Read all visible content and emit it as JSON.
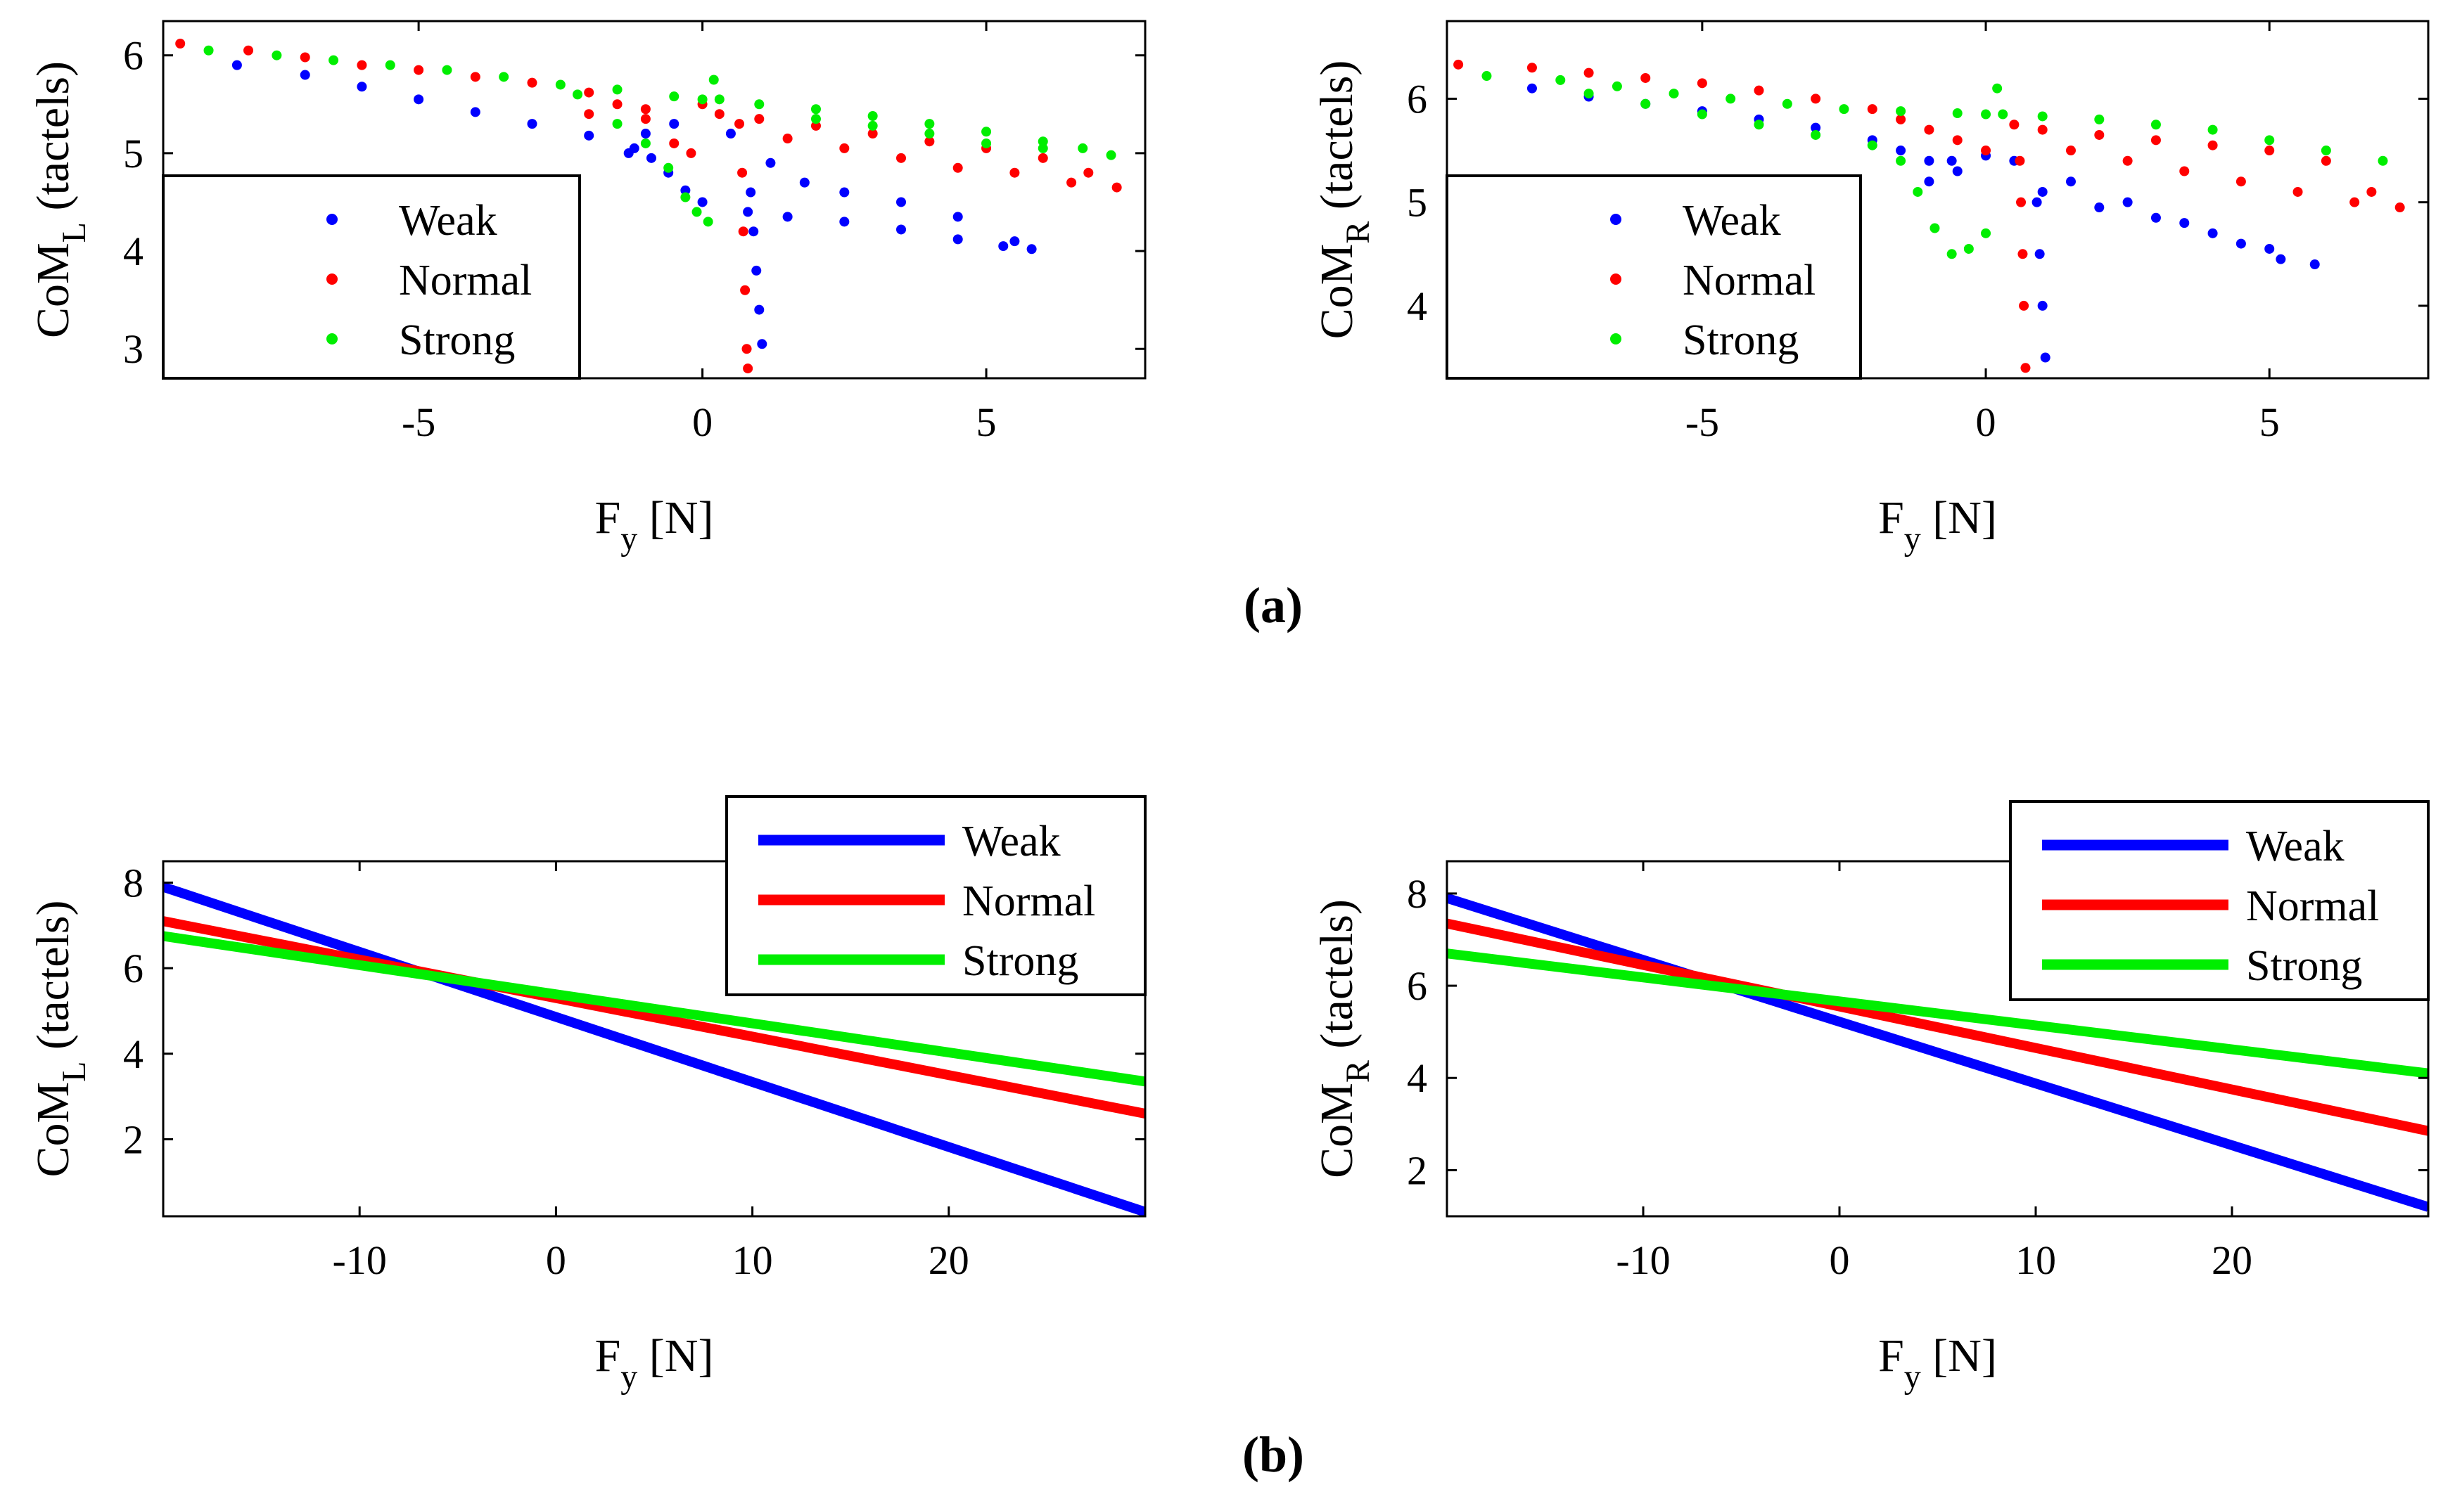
{
  "figure": {
    "panel_labels": [
      "(a)",
      "(b)"
    ]
  },
  "colors": {
    "weak": "#0000ff",
    "normal": "#ff0000",
    "strong": "#00ee00",
    "axis": "#000000"
  },
  "chart_data": [
    {
      "id": "a_left",
      "type": "scatter",
      "title": "",
      "xlabel": "F",
      "xlabel_sub": "y",
      "xlabel_unit": " [N]",
      "ylabel": "CoM",
      "ylabel_sub": "L",
      "ylabel_unit": " (tactels)",
      "xlim": [
        -9.5,
        7.8
      ],
      "ylim": [
        2.7,
        6.35
      ],
      "xticks": [
        -5,
        0,
        5
      ],
      "xtick_labels": [
        "-5",
        "0",
        "5"
      ],
      "yticks": [
        3,
        4,
        5,
        6
      ],
      "ytick_labels": [
        "3",
        "4",
        "5",
        "6"
      ],
      "legend": {
        "position": "bottom-left",
        "labels": [
          "Weak",
          "Normal",
          "Strong"
        ]
      },
      "series": [
        {
          "name": "Weak",
          "color": "weak",
          "points": [
            [
              -8.2,
              5.9
            ],
            [
              -7.0,
              5.8
            ],
            [
              -6.0,
              5.68
            ],
            [
              -5.0,
              5.55
            ],
            [
              -4.0,
              5.42
            ],
            [
              -3.0,
              5.3
            ],
            [
              -2.0,
              5.18
            ],
            [
              -1.2,
              5.05
            ],
            [
              -1.3,
              5.0
            ],
            [
              -0.9,
              4.95
            ],
            [
              -0.6,
              4.8
            ],
            [
              -0.3,
              4.62
            ],
            [
              0.0,
              4.5
            ],
            [
              0.8,
              4.4
            ],
            [
              1.5,
              4.35
            ],
            [
              2.5,
              4.3
            ],
            [
              3.5,
              4.22
            ],
            [
              4.5,
              4.12
            ],
            [
              5.3,
              4.05
            ],
            [
              5.8,
              4.02
            ],
            [
              -1.0,
              5.2
            ],
            [
              -0.5,
              5.3
            ],
            [
              0.5,
              5.2
            ],
            [
              1.2,
              4.9
            ],
            [
              1.8,
              4.7
            ],
            [
              2.5,
              4.6
            ],
            [
              3.5,
              4.5
            ],
            [
              4.5,
              4.35
            ],
            [
              5.5,
              4.1
            ],
            [
              0.85,
              4.6
            ],
            [
              0.9,
              4.2
            ],
            [
              0.95,
              3.8
            ],
            [
              1.0,
              3.4
            ],
            [
              1.05,
              3.05
            ]
          ]
        },
        {
          "name": "Normal",
          "color": "normal",
          "points": [
            [
              -9.2,
              6.12
            ],
            [
              -8.0,
              6.05
            ],
            [
              -7.0,
              5.98
            ],
            [
              -6.0,
              5.9
            ],
            [
              -5.0,
              5.85
            ],
            [
              -4.0,
              5.78
            ],
            [
              -3.0,
              5.72
            ],
            [
              -2.0,
              5.62
            ],
            [
              -1.5,
              5.5
            ],
            [
              -1.0,
              5.35
            ],
            [
              -0.5,
              5.1
            ],
            [
              -0.2,
              5.0
            ],
            [
              0.3,
              5.4
            ],
            [
              1.0,
              5.35
            ],
            [
              2.0,
              5.28
            ],
            [
              3.0,
              5.2
            ],
            [
              4.0,
              5.12
            ],
            [
              5.0,
              5.05
            ],
            [
              6.0,
              4.95
            ],
            [
              6.8,
              4.8
            ],
            [
              7.3,
              4.65
            ],
            [
              -2.0,
              5.4
            ],
            [
              -1.0,
              5.45
            ],
            [
              0.0,
              5.5
            ],
            [
              1.5,
              5.15
            ],
            [
              2.5,
              5.05
            ],
            [
              3.5,
              4.95
            ],
            [
              4.5,
              4.85
            ],
            [
              5.5,
              4.8
            ],
            [
              6.5,
              4.7
            ],
            [
              0.65,
              5.3
            ],
            [
              0.7,
              4.8
            ],
            [
              0.72,
              4.2
            ],
            [
              0.75,
              3.6
            ],
            [
              0.78,
              3.0
            ],
            [
              0.8,
              2.8
            ]
          ]
        },
        {
          "name": "Strong",
          "color": "strong",
          "points": [
            [
              -8.7,
              6.05
            ],
            [
              -7.5,
              6.0
            ],
            [
              -6.5,
              5.95
            ],
            [
              -5.5,
              5.9
            ],
            [
              -4.5,
              5.85
            ],
            [
              -3.5,
              5.78
            ],
            [
              -2.5,
              5.7
            ],
            [
              -1.5,
              5.65
            ],
            [
              -0.5,
              5.58
            ],
            [
              0.0,
              5.55
            ],
            [
              0.2,
              5.75
            ],
            [
              0.3,
              5.55
            ],
            [
              1.0,
              5.5
            ],
            [
              2.0,
              5.45
            ],
            [
              3.0,
              5.38
            ],
            [
              4.0,
              5.3
            ],
            [
              5.0,
              5.22
            ],
            [
              6.0,
              5.12
            ],
            [
              6.7,
              5.05
            ],
            [
              7.2,
              4.98
            ],
            [
              -2.2,
              5.6
            ],
            [
              -1.5,
              5.3
            ],
            [
              -1.0,
              5.1
            ],
            [
              -0.6,
              4.85
            ],
            [
              -0.3,
              4.55
            ],
            [
              -0.1,
              4.4
            ],
            [
              0.1,
              4.3
            ],
            [
              2.0,
              5.35
            ],
            [
              3.0,
              5.28
            ],
            [
              4.0,
              5.2
            ],
            [
              5.0,
              5.1
            ],
            [
              6.0,
              5.05
            ]
          ]
        }
      ]
    },
    {
      "id": "a_right",
      "type": "scatter",
      "title": "",
      "xlabel": "F",
      "xlabel_sub": "y",
      "xlabel_unit": " [N]",
      "ylabel": "CoM",
      "ylabel_sub": "R",
      "ylabel_unit": " (tactels)",
      "xlim": [
        -9.5,
        7.8
      ],
      "ylim": [
        3.3,
        6.75
      ],
      "xticks": [
        -5,
        0,
        5
      ],
      "xtick_labels": [
        "-5",
        "0",
        "5"
      ],
      "yticks": [
        4,
        5,
        6
      ],
      "ytick_labels": [
        "4",
        "5",
        "6"
      ],
      "legend": {
        "position": "bottom-left",
        "labels": [
          "Weak",
          "Normal",
          "Strong"
        ]
      },
      "series": [
        {
          "name": "Weak",
          "color": "weak",
          "points": [
            [
              -8.0,
              6.1
            ],
            [
              -7.0,
              6.02
            ],
            [
              -6.0,
              5.95
            ],
            [
              -5.0,
              5.88
            ],
            [
              -4.0,
              5.8
            ],
            [
              -3.0,
              5.72
            ],
            [
              -2.0,
              5.6
            ],
            [
              -1.5,
              5.5
            ],
            [
              -1.0,
              5.4
            ],
            [
              -0.5,
              5.3
            ],
            [
              0.0,
              5.45
            ],
            [
              0.5,
              5.4
            ],
            [
              1.5,
              5.2
            ],
            [
              2.5,
              5.0
            ],
            [
              3.5,
              4.8
            ],
            [
              4.5,
              4.6
            ],
            [
              5.2,
              4.45
            ],
            [
              5.8,
              4.4
            ],
            [
              -1.0,
              5.2
            ],
            [
              -0.6,
              5.4
            ],
            [
              1.0,
              5.1
            ],
            [
              2.0,
              4.95
            ],
            [
              3.0,
              4.85
            ],
            [
              4.0,
              4.7
            ],
            [
              5.0,
              4.55
            ],
            [
              0.9,
              5.0
            ],
            [
              0.95,
              4.5
            ],
            [
              1.0,
              4.0
            ],
            [
              1.05,
              3.5
            ]
          ]
        },
        {
          "name": "Normal",
          "color": "normal",
          "points": [
            [
              -9.3,
              6.33
            ],
            [
              -8.0,
              6.3
            ],
            [
              -7.0,
              6.25
            ],
            [
              -6.0,
              6.2
            ],
            [
              -5.0,
              6.15
            ],
            [
              -4.0,
              6.08
            ],
            [
              -3.0,
              6.0
            ],
            [
              -2.0,
              5.9
            ],
            [
              -1.5,
              5.8
            ],
            [
              -1.0,
              5.7
            ],
            [
              -0.5,
              5.6
            ],
            [
              0.0,
              5.5
            ],
            [
              0.5,
              5.75
            ],
            [
              1.0,
              5.7
            ],
            [
              2.0,
              5.65
            ],
            [
              3.0,
              5.6
            ],
            [
              4.0,
              5.55
            ],
            [
              5.0,
              5.5
            ],
            [
              6.0,
              5.4
            ],
            [
              6.8,
              5.1
            ],
            [
              7.3,
              4.95
            ],
            [
              1.5,
              5.5
            ],
            [
              2.5,
              5.4
            ],
            [
              3.5,
              5.3
            ],
            [
              4.5,
              5.2
            ],
            [
              5.5,
              5.1
            ],
            [
              6.5,
              5.0
            ],
            [
              0.6,
              5.4
            ],
            [
              0.62,
              5.0
            ],
            [
              0.65,
              4.5
            ],
            [
              0.67,
              4.0
            ],
            [
              0.7,
              3.4
            ]
          ]
        },
        {
          "name": "Strong",
          "color": "strong",
          "points": [
            [
              -8.8,
              6.22
            ],
            [
              -7.5,
              6.18
            ],
            [
              -6.5,
              6.12
            ],
            [
              -5.5,
              6.05
            ],
            [
              -4.5,
              6.0
            ],
            [
              -3.5,
              5.95
            ],
            [
              -2.5,
              5.9
            ],
            [
              -1.5,
              5.88
            ],
            [
              -0.5,
              5.86
            ],
            [
              0.0,
              5.85
            ],
            [
              0.2,
              6.1
            ],
            [
              0.3,
              5.85
            ],
            [
              1.0,
              5.83
            ],
            [
              2.0,
              5.8
            ],
            [
              3.0,
              5.75
            ],
            [
              4.0,
              5.7
            ],
            [
              5.0,
              5.6
            ],
            [
              6.0,
              5.5
            ],
            [
              7.0,
              5.4
            ],
            [
              -7.0,
              6.05
            ],
            [
              -6.0,
              5.95
            ],
            [
              -5.0,
              5.85
            ],
            [
              -4.0,
              5.75
            ],
            [
              -3.0,
              5.65
            ],
            [
              -2.0,
              5.55
            ],
            [
              -1.5,
              5.4
            ],
            [
              -1.2,
              5.1
            ],
            [
              -0.9,
              4.75
            ],
            [
              -0.6,
              4.5
            ],
            [
              -0.3,
              4.55
            ],
            [
              0.0,
              4.7
            ]
          ]
        }
      ]
    },
    {
      "id": "b_left",
      "type": "line",
      "title": "",
      "xlabel": "F",
      "xlabel_sub": "y",
      "xlabel_unit": " [N]",
      "ylabel": "CoM",
      "ylabel_sub": "L",
      "ylabel_unit": " (tactels)",
      "xlim": [
        -20,
        30
      ],
      "ylim": [
        0.2,
        8.5
      ],
      "xticks": [
        -10,
        0,
        10,
        20
      ],
      "xtick_labels": [
        "-10",
        "0",
        "10",
        "20"
      ],
      "yticks": [
        2,
        4,
        6,
        8
      ],
      "ytick_labels": [
        "2",
        "4",
        "6",
        "8"
      ],
      "legend": {
        "position": "top-right",
        "labels": [
          "Weak",
          "Normal",
          "Strong"
        ]
      },
      "series": [
        {
          "name": "Weak",
          "color": "weak",
          "x": [
            -20,
            30
          ],
          "y": [
            7.9,
            0.3
          ]
        },
        {
          "name": "Normal",
          "color": "normal",
          "x": [
            -20,
            30
          ],
          "y": [
            7.1,
            2.6
          ]
        },
        {
          "name": "Strong",
          "color": "strong",
          "x": [
            -20,
            30
          ],
          "y": [
            6.75,
            3.35
          ]
        }
      ]
    },
    {
      "id": "b_right",
      "type": "line",
      "title": "",
      "xlabel": "F",
      "xlabel_sub": "y",
      "xlabel_unit": " [N]",
      "ylabel": "CoM",
      "ylabel_sub": "R",
      "ylabel_unit": " (tactels)",
      "xlim": [
        -20,
        30
      ],
      "ylim": [
        1.0,
        8.7
      ],
      "xticks": [
        -10,
        0,
        10,
        20
      ],
      "xtick_labels": [
        "-10",
        "0",
        "10",
        "20"
      ],
      "yticks": [
        2,
        4,
        6,
        8
      ],
      "ytick_labels": [
        "2",
        "4",
        "6",
        "8"
      ],
      "legend": {
        "position": "top-right",
        "labels": [
          "Weak",
          "Normal",
          "Strong"
        ]
      },
      "series": [
        {
          "name": "Weak",
          "color": "weak",
          "x": [
            -20,
            30
          ],
          "y": [
            7.9,
            1.2
          ]
        },
        {
          "name": "Normal",
          "color": "normal",
          "x": [
            -20,
            30
          ],
          "y": [
            7.35,
            2.85
          ]
        },
        {
          "name": "Strong",
          "color": "strong",
          "x": [
            -20,
            30
          ],
          "y": [
            6.7,
            4.1
          ]
        }
      ]
    }
  ]
}
